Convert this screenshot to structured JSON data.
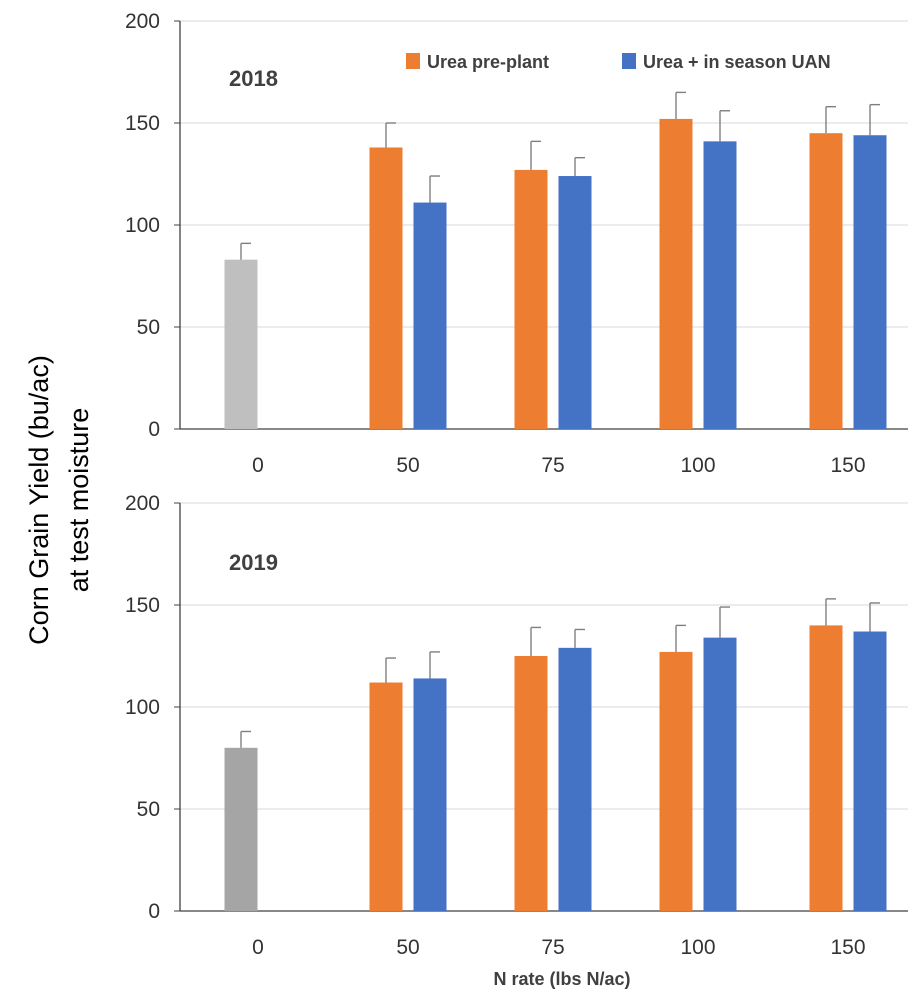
{
  "chart_data": {
    "type": "bar",
    "ylabel_line1": "Corn Grain Yield (bu/ac)",
    "ylabel_line2": "at test moisture",
    "xlabel": "N rate (lbs N/ac)",
    "legend": {
      "placement": "top-right",
      "entries": [
        {
          "name": "Urea pre-plant",
          "color": "#ED7D31"
        },
        {
          "name": "Urea + in season UAN",
          "color": "#4472C4"
        }
      ]
    },
    "ylim": [
      0,
      200
    ],
    "yticks": [
      0,
      50,
      100,
      150,
      200
    ],
    "categories": [
      "0",
      "50",
      "75",
      "100",
      "150"
    ],
    "gridlines": true,
    "panels": [
      {
        "label": "2018",
        "control": {
          "category": "0",
          "value": 83,
          "error": 8,
          "color": "#BFBFBF"
        },
        "series": [
          {
            "name": "Urea pre-plant",
            "color": "#ED7D31",
            "values": [
              null,
              138,
              127,
              152,
              145
            ],
            "errors": [
              null,
              12,
              14,
              13,
              13
            ]
          },
          {
            "name": "Urea + in season UAN",
            "color": "#4472C4",
            "values": [
              null,
              111,
              124,
              141,
              144
            ],
            "errors": [
              null,
              13,
              9,
              15,
              15
            ]
          }
        ]
      },
      {
        "label": "2019",
        "control": {
          "category": "0",
          "value": 80,
          "error": 8,
          "color": "#A5A5A5"
        },
        "series": [
          {
            "name": "Urea pre-plant",
            "color": "#ED7D31",
            "values": [
              null,
              112,
              125,
              127,
              140
            ],
            "errors": [
              null,
              12,
              14,
              13,
              13
            ]
          },
          {
            "name": "Urea + in season UAN",
            "color": "#4472C4",
            "values": [
              null,
              114,
              129,
              134,
              137
            ],
            "errors": [
              null,
              13,
              9,
              15,
              14
            ]
          }
        ]
      }
    ]
  }
}
